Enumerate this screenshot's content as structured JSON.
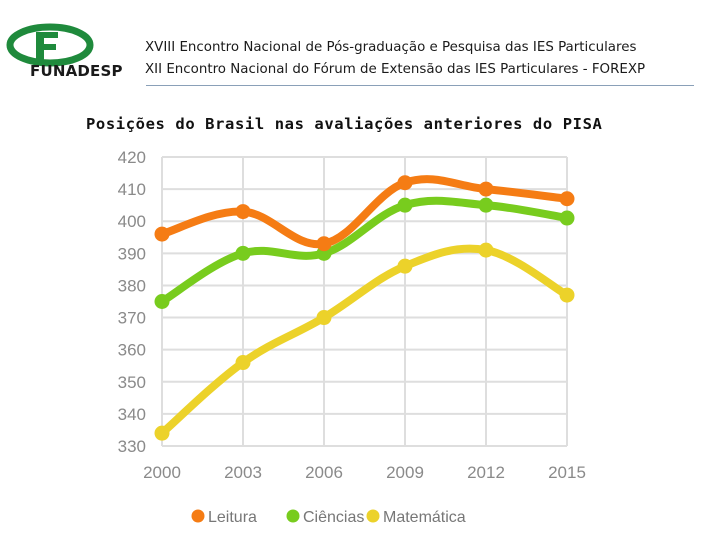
{
  "header": {
    "logo_text": "FUNADESP",
    "line1": "XVIII Encontro Nacional de Pós-graduação e Pesquisa das IES Particulares",
    "line2": "XII Encontro Nacional do Fórum de Extensão das IES Particulares - FOREXP"
  },
  "colors": {
    "leitura": "#f57c14",
    "ciencias": "#78cc1e",
    "matematica": "#ecd22a",
    "grid": "#dedede"
  },
  "chart_data": {
    "type": "line",
    "title": "Posições do Brasil nas avaliações anteriores do PISA",
    "categories": [
      "2000",
      "2003",
      "2006",
      "2009",
      "2012",
      "2015"
    ],
    "y_ticks": [
      "420",
      "410",
      "400",
      "390",
      "380",
      "370",
      "360",
      "350",
      "340",
      "330"
    ],
    "ylim": [
      330,
      420
    ],
    "grid": true,
    "legend_position": "bottom",
    "series": [
      {
        "name": "Leitura",
        "values": [
          396,
          403,
          393,
          412,
          410,
          407
        ]
      },
      {
        "name": "Ciências",
        "values": [
          375,
          390,
          390,
          405,
          405,
          401
        ]
      },
      {
        "name": "Matemática",
        "values": [
          334,
          356,
          370,
          386,
          391,
          377
        ]
      }
    ]
  }
}
